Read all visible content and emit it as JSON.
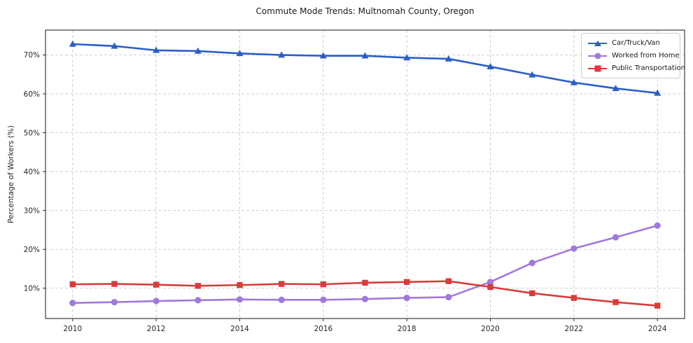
{
  "title": "Commute Mode Trends: Multnomah County, Oregon",
  "colors": {
    "background": "#ffffff",
    "grid": "#c9c9c9",
    "spine": "#2b2b2b",
    "tick_text": "#262626",
    "title_text": "#1a1a1a",
    "legend_border": "#cccccc"
  },
  "chart_data": {
    "type": "line",
    "title": "Commute Mode Trends: Multnomah County, Oregon",
    "xlabel": "",
    "ylabel": "Percentage of Workers (%)",
    "x": [
      2010,
      2011,
      2012,
      2013,
      2014,
      2015,
      2016,
      2017,
      2018,
      2019,
      2020,
      2021,
      2022,
      2023,
      2024
    ],
    "series": [
      {
        "name": "Car/Truck/Van",
        "color": "#2b5fc6",
        "marker": "triangle",
        "values": [
          72.8,
          72.3,
          71.2,
          71.0,
          70.4,
          70.0,
          69.8,
          69.8,
          69.3,
          69.0,
          67.0,
          64.9,
          62.9,
          61.4,
          60.2
        ]
      },
      {
        "name": "Worked from Home",
        "color": "#a178db",
        "marker": "circle",
        "values": [
          6.2,
          6.4,
          6.7,
          6.9,
          7.1,
          7.0,
          7.0,
          7.2,
          7.5,
          7.7,
          11.6,
          16.5,
          20.2,
          23.1,
          26.1
        ]
      },
      {
        "name": "Public Transportation",
        "color": "#d93b3b",
        "marker": "square",
        "values": [
          11.0,
          11.1,
          10.9,
          10.6,
          10.8,
          11.1,
          11.0,
          11.4,
          11.6,
          11.8,
          10.3,
          8.7,
          7.5,
          6.4,
          5.5
        ]
      }
    ],
    "xlim": [
      2009.35,
      2024.65
    ],
    "ylim": [
      2.2,
      76.4
    ],
    "xticks": [
      2010,
      2012,
      2014,
      2016,
      2018,
      2020,
      2022,
      2024
    ],
    "yticks": [
      10,
      20,
      30,
      40,
      50,
      60,
      70
    ],
    "ytick_suffix": "%",
    "grid": true,
    "grid_style": "dashed",
    "legend_position": "upper right"
  }
}
